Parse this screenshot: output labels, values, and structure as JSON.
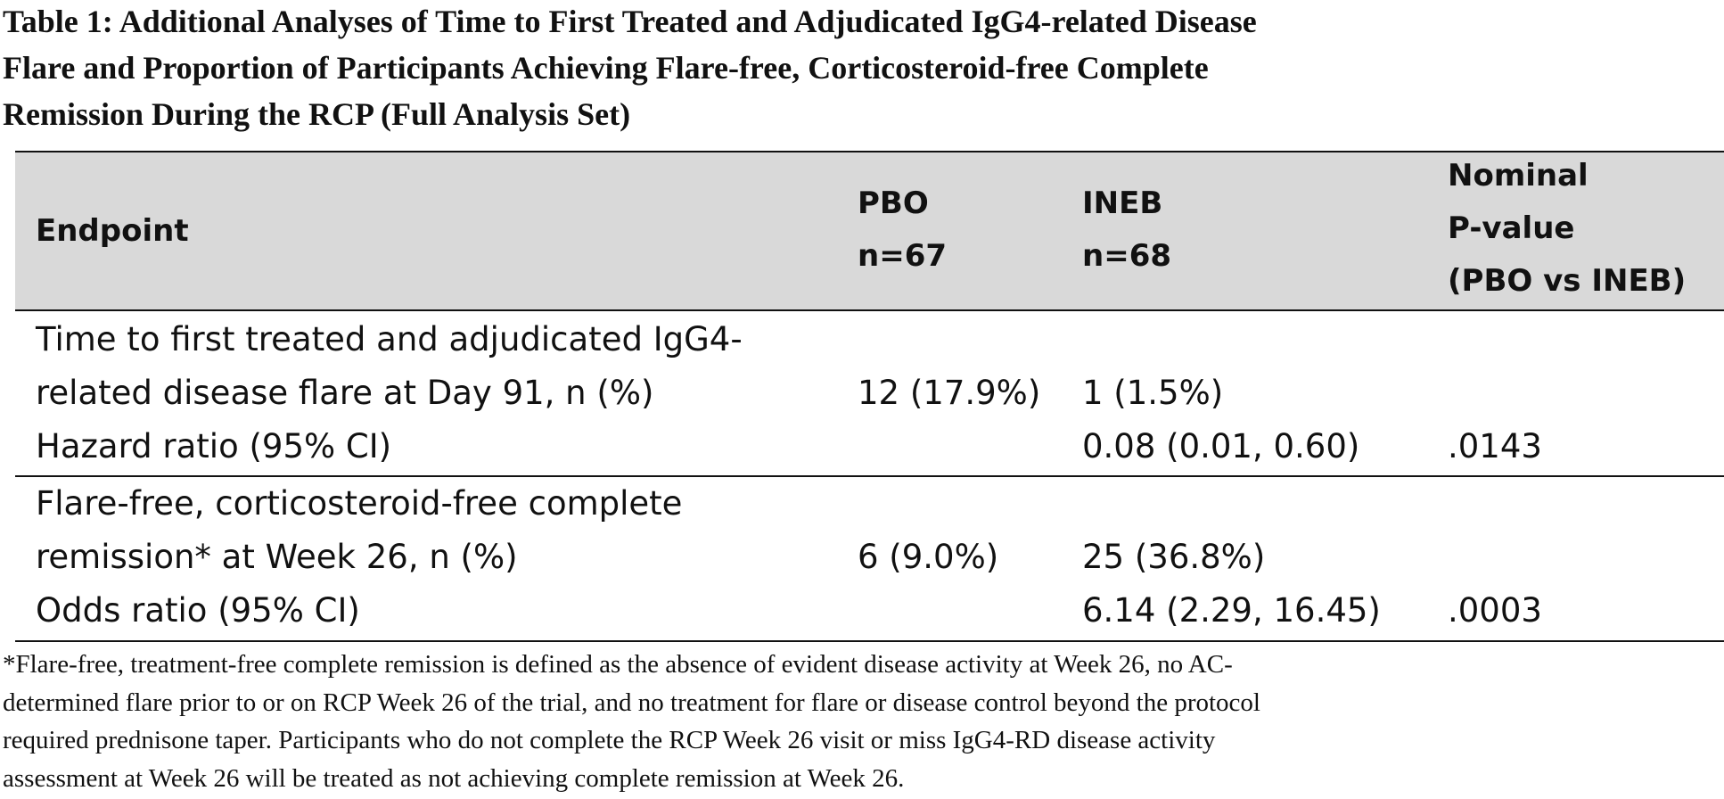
{
  "title": {
    "lines": [
      "Table 1: Additional Analyses of Time to First Treated and Adjudicated IgG4-related Disease",
      "Flare and Proportion of Participants Achieving Flare-free, Corticosteroid-free Complete",
      "Remission During the RCP (Full Analysis Set)"
    ]
  },
  "table": {
    "header": {
      "endpoint": "Endpoint",
      "pbo": [
        "PBO",
        "n=67"
      ],
      "ineb": [
        "INEB",
        "n=68"
      ],
      "pvalue": [
        "Nominal",
        "P-value",
        "(PBO vs INEB)"
      ]
    },
    "rows": [
      {
        "endpoint": [
          "Time to first treated and adjudicated IgG4-",
          "related disease flare at Day 91, n (%)"
        ],
        "pbo": "12 (17.9%)",
        "ineb": "1 (1.5%)",
        "ratio_label": "Hazard ratio (95% CI)",
        "ratio_value": "0.08 (0.01, 0.60)",
        "pvalue": ".0143"
      },
      {
        "endpoint": [
          "Flare-free, corticosteroid-free complete",
          "remission* at Week 26, n (%)"
        ],
        "pbo": "6 (9.0%)",
        "ineb": "25 (36.8%)",
        "ratio_label": "Odds ratio (95% CI)",
        "ratio_value": "6.14 (2.29, 16.45)",
        "pvalue": ".0003"
      }
    ]
  },
  "footnote": {
    "lines": [
      "*Flare-free, treatment-free complete remission is defined as the absence of evident disease activity at Week 26, no AC-",
      "determined flare prior to or on RCP Week 26 of the trial, and no treatment for flare or disease control beyond the protocol",
      "required prednisone taper. Participants who do not complete the RCP Week 26 visit or miss IgG4-RD disease activity",
      "assessment at Week 26 will be treated as not achieving complete remission at Week 26."
    ]
  }
}
